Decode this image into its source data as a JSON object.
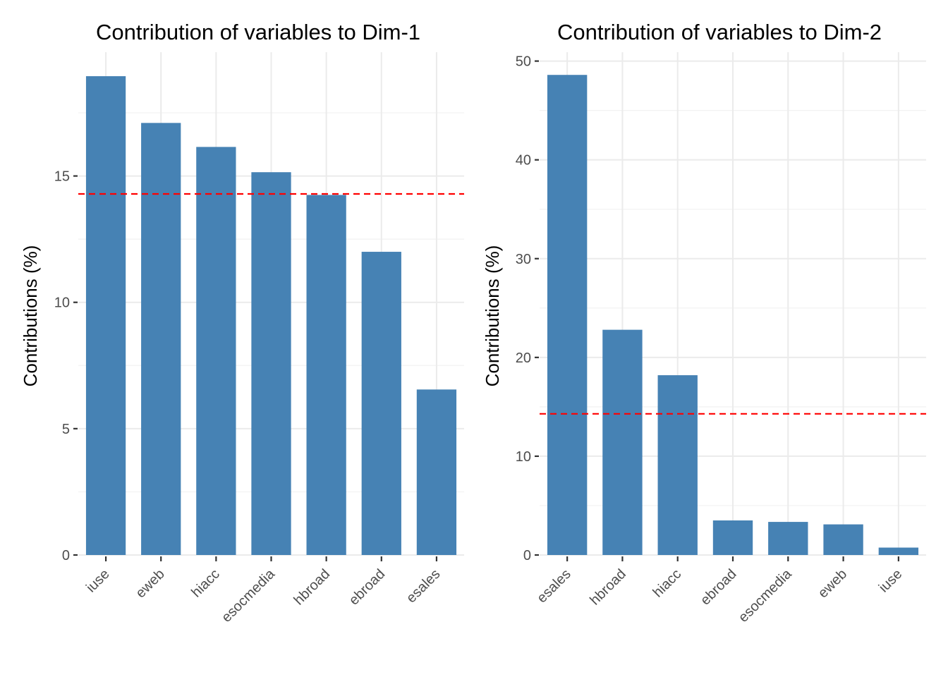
{
  "colors": {
    "bar": "#4682B4",
    "reference_line": "#FF0000",
    "grid": "#EBEBEB"
  },
  "chart_data": [
    {
      "type": "bar",
      "title": "Contribution of variables to Dim-1",
      "xlabel": "",
      "ylabel": "Contributions (%)",
      "categories": [
        "iuse",
        "eweb",
        "hiacc",
        "esocmedia",
        "hbroad",
        "ebroad",
        "esales"
      ],
      "values": [
        18.95,
        17.1,
        16.15,
        15.15,
        14.25,
        12.0,
        6.55
      ],
      "reference_line": 14.29,
      "ylim": [
        0,
        19.9
      ],
      "yticks": [
        0,
        5,
        10,
        15
      ],
      "ytick_labels": [
        "0",
        "5",
        "10",
        "15"
      ],
      "grid": true
    },
    {
      "type": "bar",
      "title": "Contribution of variables to Dim-2",
      "xlabel": "",
      "ylabel": "Contributions (%)",
      "categories": [
        "esales",
        "hbroad",
        "hiacc",
        "ebroad",
        "esocmedia",
        "eweb",
        "iuse"
      ],
      "values": [
        48.6,
        22.8,
        18.2,
        3.5,
        3.35,
        3.1,
        0.75
      ],
      "reference_line": 14.29,
      "ylim": [
        0,
        50.9
      ],
      "yticks": [
        0,
        10,
        20,
        30,
        40,
        50
      ],
      "ytick_labels": [
        "0",
        "10",
        "20",
        "30",
        "40",
        "50"
      ],
      "grid": true
    }
  ]
}
